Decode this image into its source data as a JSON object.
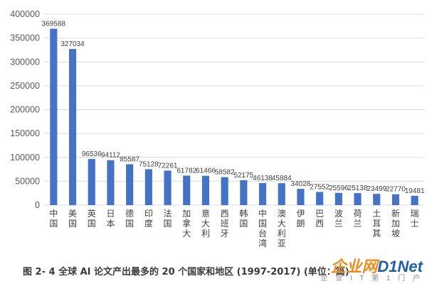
{
  "chart_data": {
    "type": "bar",
    "categories": [
      "中国",
      "美国",
      "英国",
      "日本",
      "德国",
      "印度",
      "法国",
      "加拿大",
      "意大利",
      "西班牙",
      "韩国",
      "中国台湾",
      "澳大利亚",
      "伊朗",
      "巴西",
      "波兰",
      "荷兰",
      "土耳其",
      "新加坡",
      "瑞士"
    ],
    "values": [
      369588,
      327034,
      96536,
      94112,
      85587,
      75128,
      72261,
      61782,
      61466,
      58582,
      52175,
      46138,
      45884,
      34028,
      27552,
      25596,
      25138,
      23499,
      22770,
      19481
    ],
    "data_labels": [
      "369588",
      "327034",
      "96536",
      "94112",
      "85587",
      "75128",
      "72261",
      "61782",
      "61466",
      "58582",
      "52175",
      "46138",
      "45884",
      "34028",
      "27552",
      "25596",
      "25138",
      "23499",
      "22770",
      "19481"
    ],
    "yticks": [
      "0",
      "50000",
      "100000",
      "150000",
      "200000",
      "250000",
      "300000",
      "350000",
      "400000"
    ],
    "ylim": [
      0,
      400000
    ],
    "bar_color": "#4472c4",
    "grid": true,
    "legend": "none"
  },
  "caption": "图 2- 4 全球 AI 论文产出最多的 20 个国家和地区 (1997-2017) (单位：篇)",
  "watermark": {
    "main_a": "企业网",
    "main_b": "D1Net",
    "sub": "企 业 I T 第 1 门 户"
  }
}
